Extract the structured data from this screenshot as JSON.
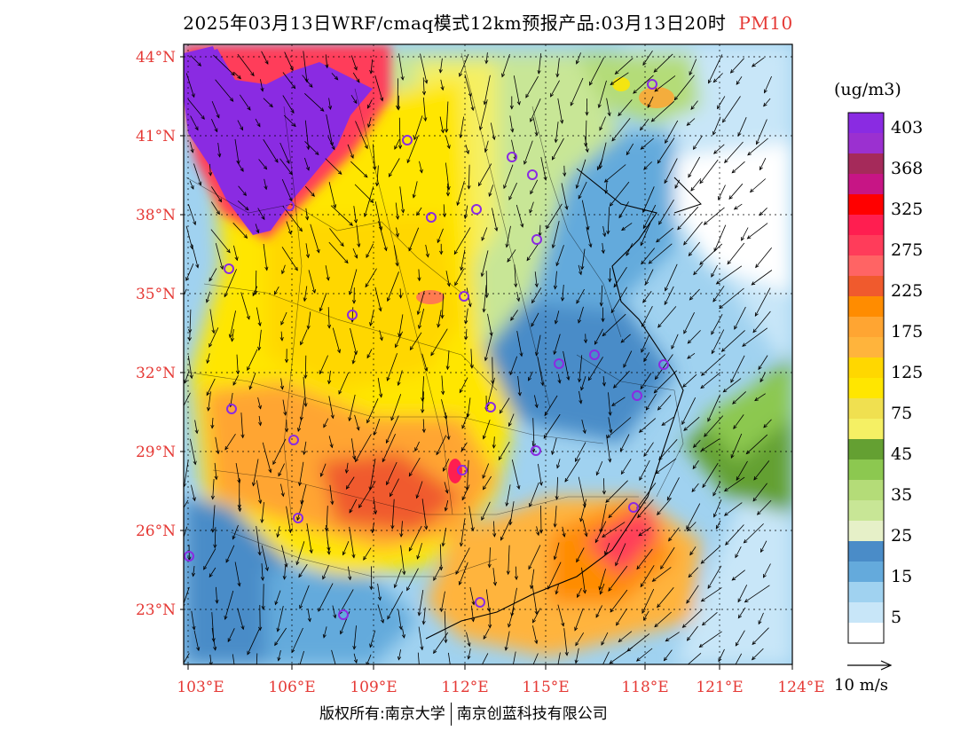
{
  "title": {
    "main": "2025年03月13日WRF/cmaq模式12km预报产品:03月13日20时",
    "pollutant": "PM10",
    "pollutant_color": "#e53935"
  },
  "map": {
    "lat_labels": [
      "44°N",
      "41°N",
      "38°N",
      "35°N",
      "32°N",
      "29°N",
      "26°N",
      "23°N"
    ],
    "lon_labels": [
      "103°E",
      "106°E",
      "109°E",
      "112°E",
      "115°E",
      "118°E",
      "121°E",
      "124°E"
    ],
    "label_color": "#e53935"
  },
  "colorbar": {
    "unit": "(ug/m3)",
    "bins": [
      {
        "color": "#8a2be2",
        "label": "403"
      },
      {
        "color": "#9b30d0",
        "label": ""
      },
      {
        "color": "#a52a5a",
        "label": "368"
      },
      {
        "color": "#c71585",
        "label": ""
      },
      {
        "color": "#ff0000",
        "label": "325"
      },
      {
        "color": "#ff1e50",
        "label": ""
      },
      {
        "color": "#ff3c5a",
        "label": "275"
      },
      {
        "color": "#ff6464",
        "label": ""
      },
      {
        "color": "#f05a2d",
        "label": "225"
      },
      {
        "color": "#ff8c00",
        "label": ""
      },
      {
        "color": "#ffa532",
        "label": "175"
      },
      {
        "color": "#ffb43c",
        "label": ""
      },
      {
        "color": "#ffd700",
        "label": "125"
      },
      {
        "color": "#ffe600",
        "label": ""
      },
      {
        "color": "#f0e050",
        "label": "75"
      },
      {
        "color": "#f5f064",
        "label": ""
      },
      {
        "color": "#64a032",
        "label": "45"
      },
      {
        "color": "#8cc850",
        "label": ""
      },
      {
        "color": "#b4dc78",
        "label": "35"
      },
      {
        "color": "#c8e696",
        "label": ""
      },
      {
        "color": "#e6f0c8",
        "label": "25"
      },
      {
        "color": "#4a8cc8",
        "label": ""
      },
      {
        "color": "#64aadc",
        "label": "15"
      },
      {
        "color": "#a0d2f0",
        "label": ""
      },
      {
        "color": "#c8e6f8",
        "label": "5"
      },
      {
        "color": "#ffffff",
        "label": ""
      }
    ]
  },
  "wind_scale": {
    "label": "10 m/s"
  },
  "footer": {
    "left": "版权所有:南京大学",
    "right": "南京创蓝科技有限公司"
  },
  "stations": [
    [
      735,
      95
    ],
    [
      577,
      177
    ],
    [
      600,
      197
    ],
    [
      459,
      158
    ],
    [
      537,
      236
    ],
    [
      486,
      245
    ],
    [
      326,
      232
    ],
    [
      605,
      270
    ],
    [
      258,
      303
    ],
    [
      523,
      334
    ],
    [
      397,
      355
    ],
    [
      630,
      410
    ],
    [
      670,
      400
    ],
    [
      748,
      411
    ],
    [
      718,
      446
    ],
    [
      261,
      461
    ],
    [
      553,
      459
    ],
    [
      331,
      496
    ],
    [
      604,
      508
    ],
    [
      521,
      530
    ],
    [
      714,
      572
    ],
    [
      336,
      584
    ],
    [
      213,
      627
    ],
    [
      541,
      679
    ],
    [
      387,
      693
    ]
  ]
}
